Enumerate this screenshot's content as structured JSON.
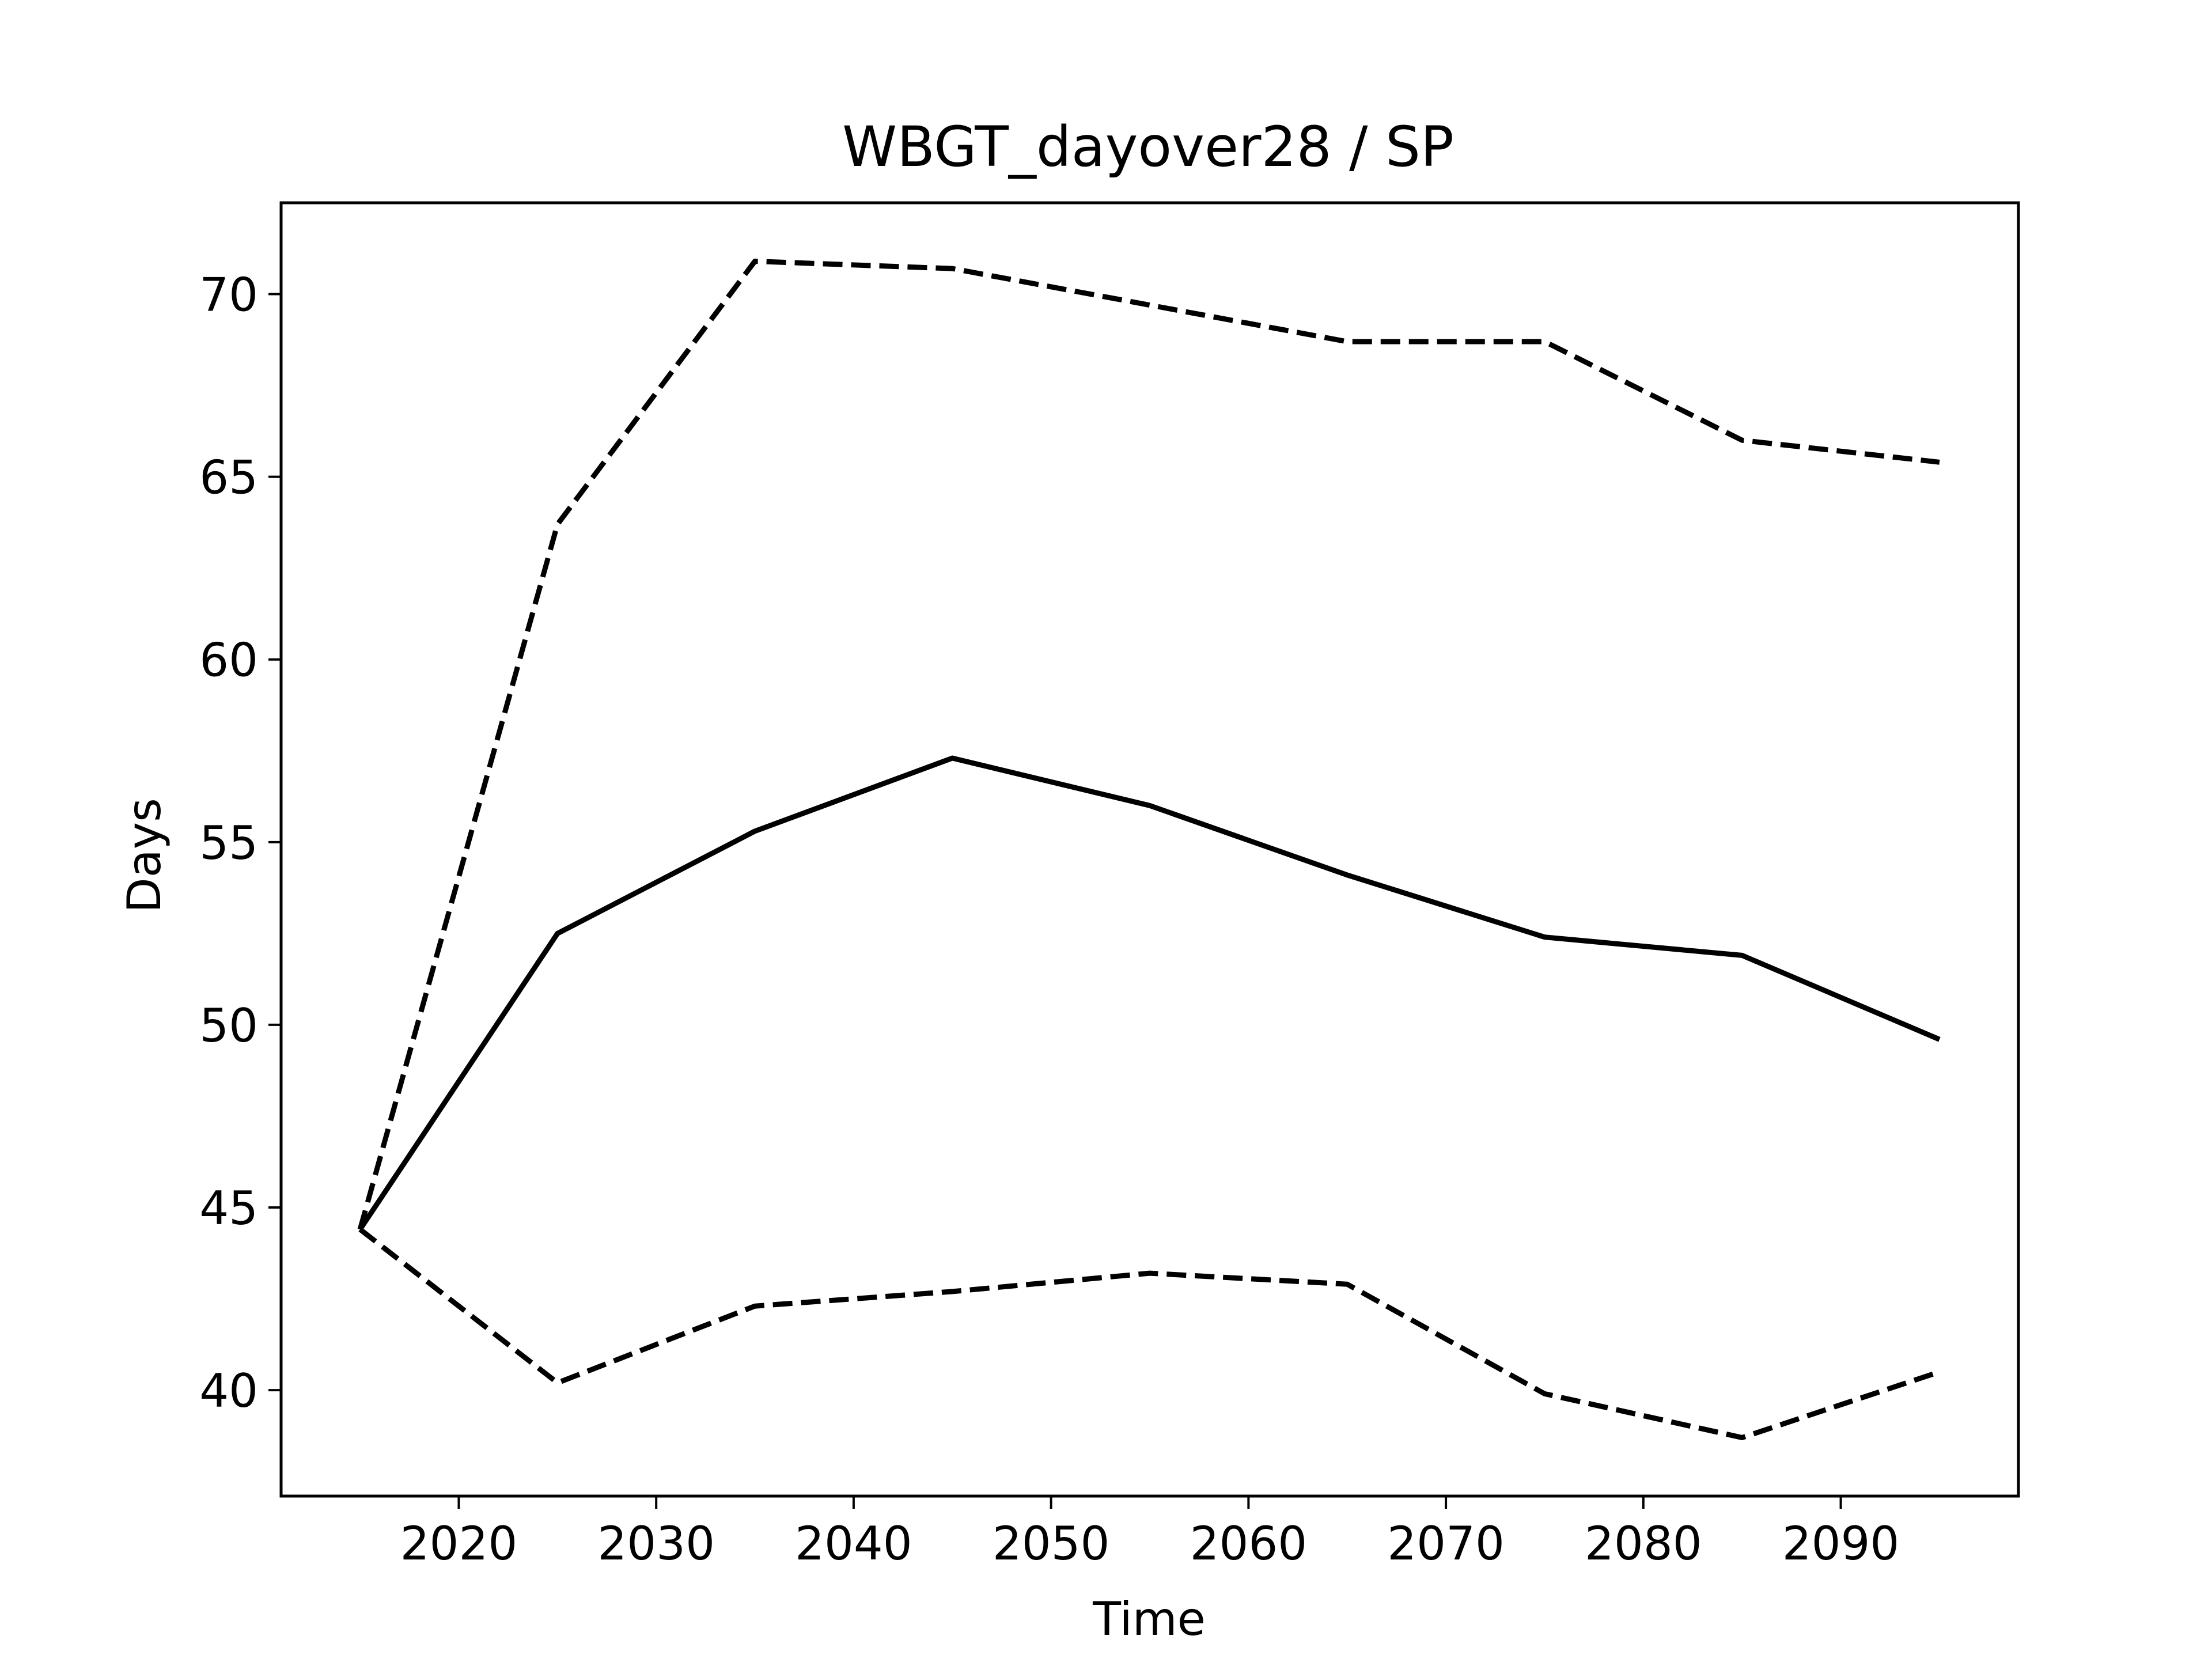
{
  "chart_data": {
    "type": "line",
    "title": "WBGT_dayover28 / SP",
    "xlabel": "Time",
    "ylabel": "Days",
    "x": [
      2015,
      2025,
      2035,
      2045,
      2055,
      2065,
      2075,
      2085,
      2095
    ],
    "xlim": [
      2011,
      2099
    ],
    "ylim": [
      37.1,
      72.5
    ],
    "xticks": [
      2020,
      2030,
      2040,
      2050,
      2060,
      2070,
      2080,
      2090
    ],
    "yticks": [
      40,
      45,
      50,
      55,
      60,
      65,
      70
    ],
    "grid": false,
    "legend": "none",
    "series": [
      {
        "style": "solid",
        "color": "#000000",
        "values": [
          44.4,
          52.5,
          55.3,
          57.3,
          56.0,
          54.1,
          52.4,
          51.9,
          49.6
        ]
      },
      {
        "style": "dashed",
        "color": "#000000",
        "values": [
          44.4,
          63.7,
          70.9,
          70.7,
          69.7,
          68.7,
          68.7,
          66.0,
          65.4
        ]
      },
      {
        "style": "dashed",
        "color": "#000000",
        "values": [
          44.4,
          40.2,
          42.3,
          42.7,
          43.2,
          42.9,
          39.9,
          38.7,
          40.5
        ]
      }
    ]
  }
}
